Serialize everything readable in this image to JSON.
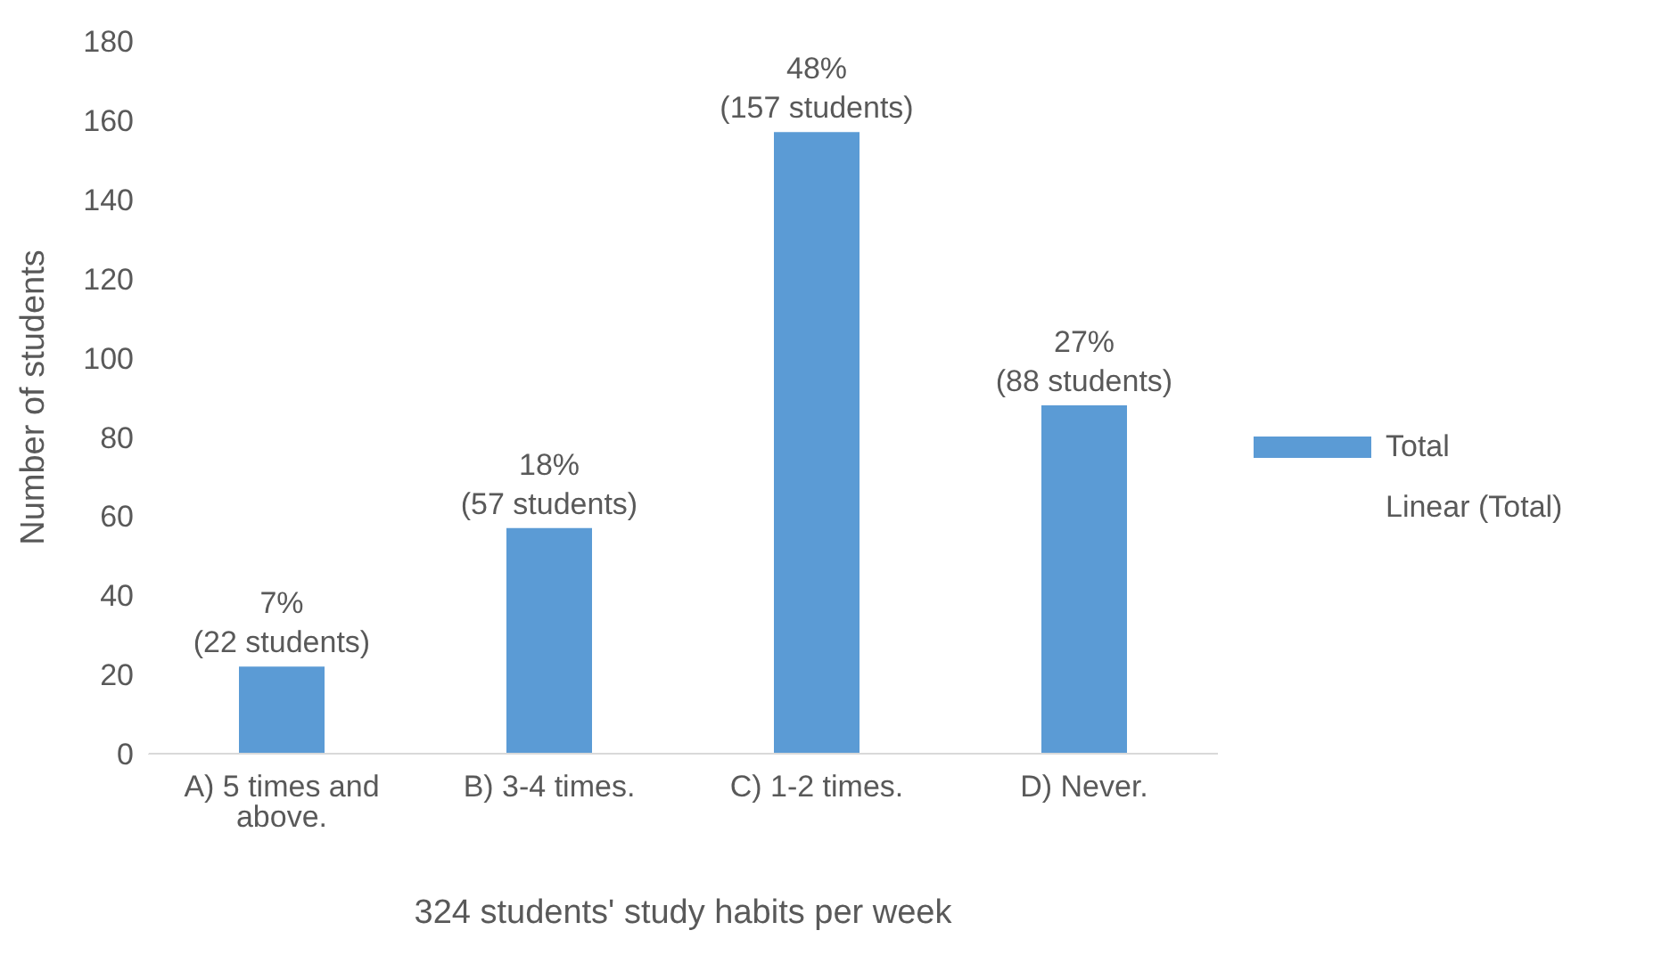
{
  "chart_data": {
    "type": "bar",
    "xlabel": "324 students' study habits per week",
    "ylabel": "Number of students",
    "categories": [
      "A) 5 times and above.",
      "B) 3-4 times.",
      "C) 1-2 times.",
      "D) Never."
    ],
    "series": [
      {
        "name": "Total",
        "color": "#5b9bd5",
        "values": [
          22,
          57,
          157,
          88
        ],
        "value_labels": [
          "7%\n(22 students)",
          "18%\n(57 students)",
          "48%\n(157 students)",
          "27%\n(88 students)"
        ]
      }
    ],
    "ylim": [
      0,
      180
    ],
    "yticks": [
      0,
      20,
      40,
      60,
      80,
      100,
      120,
      140,
      160,
      180
    ],
    "legend": "right",
    "annotations": [
      "Linear (Total)"
    ]
  }
}
